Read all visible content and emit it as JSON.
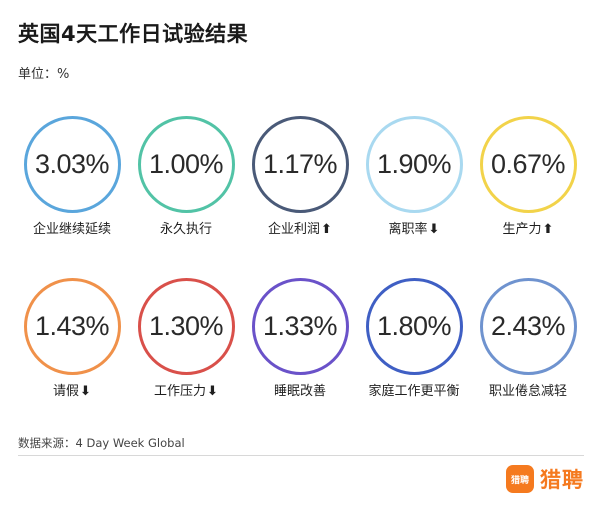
{
  "title": "英国4天工作日试验结果",
  "unit": "单位：%",
  "source": "数据来源：4 Day Week Global",
  "brand": {
    "logo_text": "猎聘",
    "name": "猎聘",
    "color": "#f57a1f"
  },
  "chart_data": {
    "type": "bubble-rings",
    "unit": "%",
    "items": [
      {
        "label": "企业继续延续",
        "value": 3.03,
        "display": "3.03%",
        "arrow": "",
        "color": "#5aa6dc"
      },
      {
        "label": "永久执行",
        "value": 1.0,
        "display": "1.00%",
        "arrow": "",
        "color": "#52c3a6"
      },
      {
        "label": "企业利润",
        "value": 1.17,
        "display": "1.17%",
        "arrow": "⬆",
        "color": "#4a5a78"
      },
      {
        "label": "离职率",
        "value": 1.9,
        "display": "1.90%",
        "arrow": "⬇",
        "color": "#a9d9f0"
      },
      {
        "label": "生产力",
        "value": 0.67,
        "display": "0.67%",
        "arrow": "⬆",
        "color": "#f2d34a"
      },
      {
        "label": "请假",
        "value": 1.43,
        "display": "1.43%",
        "arrow": "⬇",
        "color": "#f0914a"
      },
      {
        "label": "工作压力",
        "value": 1.3,
        "display": "1.30%",
        "arrow": "⬇",
        "color": "#d9504a"
      },
      {
        "label": "睡眠改善",
        "value": 1.33,
        "display": "1.33%",
        "arrow": "",
        "color": "#6a52c9"
      },
      {
        "label": "家庭工作更平衡",
        "value": 1.8,
        "display": "1.80%",
        "arrow": "",
        "color": "#3f5fc4"
      },
      {
        "label": "职业倦怠减轻",
        "value": 2.43,
        "display": "2.43%",
        "arrow": "",
        "color": "#6f93cf"
      }
    ]
  }
}
